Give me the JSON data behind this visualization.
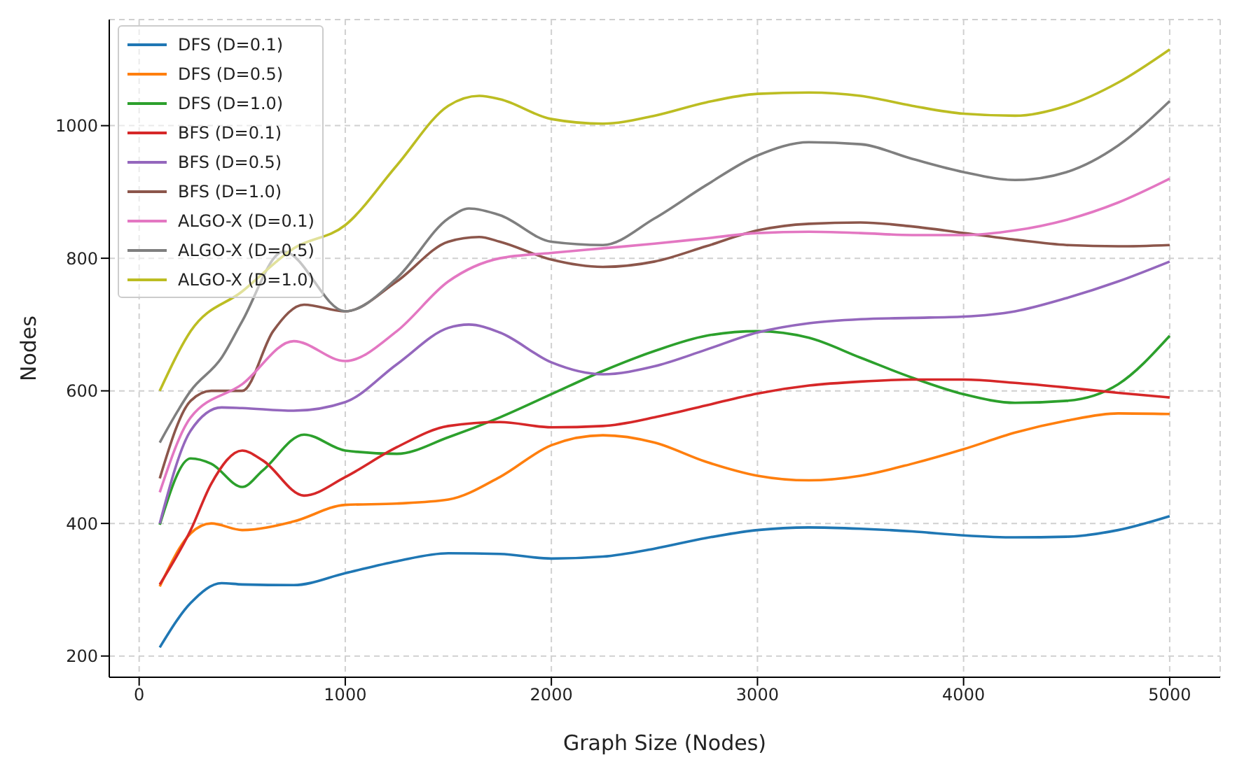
{
  "chart_data": {
    "type": "line",
    "xlabel": "Graph Size (Nodes)",
    "ylabel": "Nodes",
    "xlim": [
      -145,
      5245
    ],
    "ylim": [
      168,
      1160
    ],
    "xticks": [
      0,
      1000,
      2000,
      3000,
      4000,
      5000
    ],
    "yticks": [
      200,
      400,
      600,
      800,
      1000
    ],
    "grid": true,
    "legend": "top left",
    "marker": "none",
    "line_style": "solid",
    "series": [
      {
        "name": "DFS (D=0.1)",
        "color": "#1f77b4",
        "x": [
          100,
          250,
          400,
          500,
          750,
          1000,
          1250,
          1500,
          1750,
          2000,
          2250,
          2500,
          2750,
          3000,
          3250,
          3500,
          3750,
          4000,
          4250,
          4500,
          4750,
          5000
        ],
        "values": [
          213,
          280,
          310,
          308,
          307,
          325,
          343,
          355,
          354,
          347,
          350,
          362,
          378,
          390,
          394,
          392,
          388,
          382,
          379,
          380,
          390,
          411
        ]
      },
      {
        "name": "DFS (D=0.5)",
        "color": "#ff7f0e",
        "x": [
          100,
          250,
          350,
          500,
          750,
          1000,
          1250,
          1500,
          1750,
          2000,
          2250,
          2500,
          2750,
          3000,
          3250,
          3500,
          3750,
          4000,
          4250,
          4500,
          4750,
          5000
        ],
        "values": [
          305,
          385,
          400,
          390,
          403,
          428,
          430,
          436,
          470,
          518,
          533,
          522,
          493,
          472,
          465,
          472,
          490,
          512,
          537,
          555,
          566,
          565
        ]
      },
      {
        "name": "DFS (D=1.0)",
        "color": "#2ca02c",
        "x": [
          100,
          250,
          350,
          500,
          600,
          800,
          1000,
          1250,
          1500,
          1750,
          2000,
          2250,
          2500,
          2750,
          3000,
          3250,
          3500,
          3750,
          4000,
          4250,
          4500,
          4750,
          5000
        ],
        "values": [
          398,
          498,
          490,
          455,
          480,
          534,
          510,
          505,
          530,
          560,
          595,
          630,
          660,
          683,
          690,
          680,
          650,
          620,
          595,
          582,
          585,
          610,
          683
        ]
      },
      {
        "name": "BFS (D=0.1)",
        "color": "#d62728",
        "x": [
          100,
          250,
          350,
          500,
          600,
          800,
          1000,
          1250,
          1500,
          1750,
          2000,
          2250,
          2500,
          2750,
          3000,
          3250,
          3500,
          3750,
          4000,
          4250,
          4500,
          4750,
          5000
        ],
        "values": [
          308,
          390,
          460,
          510,
          495,
          442,
          470,
          515,
          547,
          553,
          545,
          547,
          560,
          578,
          596,
          608,
          614,
          617,
          617,
          612,
          605,
          597,
          590
        ]
      },
      {
        "name": "BFS (D=0.5)",
        "color": "#9467bd",
        "x": [
          100,
          250,
          400,
          500,
          750,
          1000,
          1250,
          1500,
          1600,
          1750,
          2000,
          2250,
          2500,
          2750,
          3000,
          3250,
          3500,
          3750,
          4000,
          4250,
          4500,
          4750,
          5000
        ],
        "values": [
          400,
          540,
          575,
          574,
          570,
          583,
          640,
          695,
          700,
          688,
          643,
          625,
          637,
          662,
          688,
          702,
          708,
          710,
          712,
          720,
          740,
          765,
          795
        ]
      },
      {
        "name": "BFS (D=1.0)",
        "color": "#8c564b",
        "x": [
          100,
          250,
          350,
          500,
          650,
          800,
          1000,
          1250,
          1500,
          1650,
          1750,
          2000,
          2250,
          2500,
          2750,
          3000,
          3250,
          3500,
          3750,
          4000,
          4250,
          4500,
          4750,
          5000
        ],
        "values": [
          468,
          585,
          600,
          600,
          690,
          730,
          720,
          765,
          825,
          832,
          825,
          798,
          787,
          795,
          818,
          842,
          852,
          854,
          848,
          838,
          828,
          820,
          818,
          820
        ]
      },
      {
        "name": "ALGO-X (D=0.1)",
        "color": "#e377c2",
        "x": [
          100,
          250,
          500,
          750,
          1000,
          1250,
          1500,
          1750,
          2000,
          2250,
          2500,
          2750,
          3000,
          3250,
          3500,
          3750,
          4000,
          4250,
          4500,
          4750,
          5000
        ],
        "values": [
          447,
          560,
          610,
          675,
          645,
          690,
          765,
          800,
          808,
          815,
          822,
          830,
          838,
          840,
          838,
          835,
          835,
          842,
          858,
          884,
          920
        ]
      },
      {
        "name": "ALGO-X (D=0.5)",
        "color": "#7f7f7f",
        "x": [
          100,
          250,
          400,
          500,
          700,
          1000,
          1250,
          1500,
          1600,
          1750,
          2000,
          2250,
          2500,
          2750,
          3000,
          3250,
          3500,
          3750,
          4000,
          4250,
          4500,
          4750,
          5000
        ],
        "values": [
          522,
          600,
          650,
          705,
          810,
          720,
          770,
          860,
          875,
          865,
          825,
          820,
          860,
          910,
          955,
          975,
          972,
          950,
          930,
          918,
          930,
          970,
          1037
        ]
      },
      {
        "name": "ALGO-X (D=1.0)",
        "color": "#bcbd22",
        "x": [
          100,
          250,
          500,
          750,
          1000,
          1250,
          1500,
          1650,
          1750,
          2000,
          2250,
          2500,
          2750,
          3000,
          3250,
          3500,
          3750,
          4000,
          4250,
          4500,
          4750,
          5000
        ],
        "values": [
          600,
          690,
          750,
          815,
          850,
          940,
          1030,
          1045,
          1040,
          1010,
          1003,
          1015,
          1035,
          1048,
          1050,
          1045,
          1030,
          1018,
          1015,
          1030,
          1065,
          1115
        ]
      }
    ]
  }
}
